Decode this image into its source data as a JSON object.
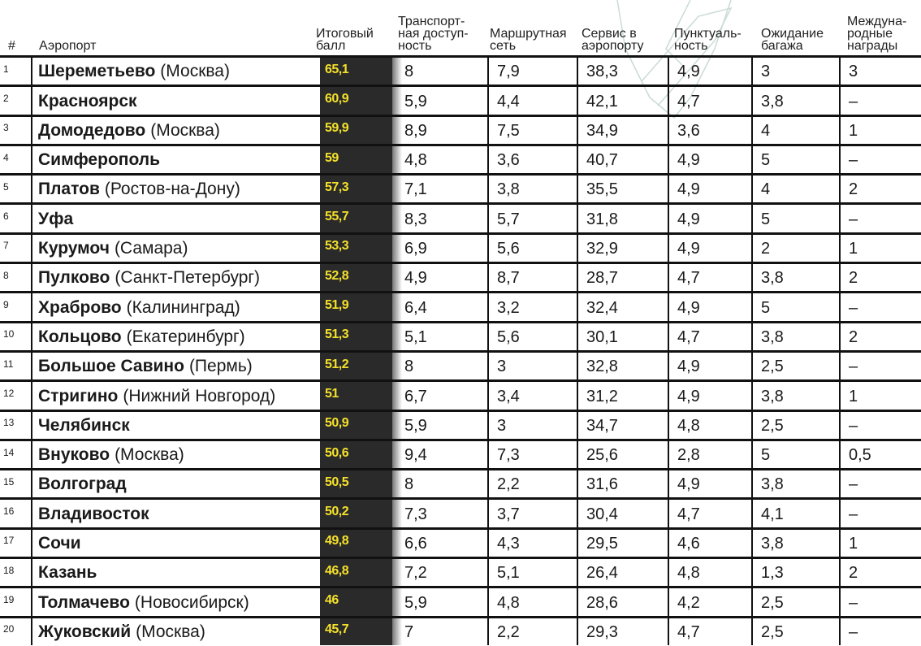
{
  "headers": {
    "rank": "#",
    "airport": "Аэропорт",
    "score": [
      "Итоговый",
      "балл"
    ],
    "transport": [
      "Транспорт-",
      "ная доступ-",
      "ность"
    ],
    "routes": [
      "Маршрутная",
      "сеть"
    ],
    "service": [
      "Сервис в",
      "аэропорту"
    ],
    "punctuality": [
      "Пунктуаль-",
      "ность"
    ],
    "baggage": [
      "Ожидание",
      "багажа"
    ],
    "awards": [
      "Междуна-",
      "родные",
      "награды"
    ]
  },
  "colors": {
    "score_bg": "#2a2a2a",
    "score_text": "#f5e12a",
    "rule": "#111111"
  },
  "rows": [
    {
      "rank": "1",
      "name": "Шереметьево",
      "city": "(Москва)",
      "score": "65,1",
      "transport": "8",
      "routes": "7,9",
      "service": "38,3",
      "punctuality": "4,9",
      "baggage": "3",
      "awards": "3"
    },
    {
      "rank": "2",
      "name": "Красноярск",
      "city": "",
      "score": "60,9",
      "transport": "5,9",
      "routes": "4,4",
      "service": "42,1",
      "punctuality": "4,7",
      "baggage": "3,8",
      "awards": "–"
    },
    {
      "rank": "3",
      "name": "Домодедово",
      "city": "(Москва)",
      "score": "59,9",
      "transport": "8,9",
      "routes": "7,5",
      "service": "34,9",
      "punctuality": "3,6",
      "baggage": "4",
      "awards": "1"
    },
    {
      "rank": "4",
      "name": "Симферополь",
      "city": "",
      "score": "59",
      "transport": "4,8",
      "routes": "3,6",
      "service": "40,7",
      "punctuality": "4,9",
      "baggage": "5",
      "awards": "–"
    },
    {
      "rank": "5",
      "name": "Платов",
      "city": "(Ростов-на-Дону)",
      "score": "57,3",
      "transport": "7,1",
      "routes": "3,8",
      "service": "35,5",
      "punctuality": "4,9",
      "baggage": "4",
      "awards": "2"
    },
    {
      "rank": "6",
      "name": "Уфа",
      "city": "",
      "score": "55,7",
      "transport": "8,3",
      "routes": "5,7",
      "service": "31,8",
      "punctuality": "4,9",
      "baggage": "5",
      "awards": "–"
    },
    {
      "rank": "7",
      "name": "Курумоч",
      "city": "(Самара)",
      "score": "53,3",
      "transport": "6,9",
      "routes": "5,6",
      "service": "32,9",
      "punctuality": "4,9",
      "baggage": "2",
      "awards": "1"
    },
    {
      "rank": "8",
      "name": "Пулково",
      "city": "(Санкт-Петербург)",
      "score": "52,8",
      "transport": "4,9",
      "routes": "8,7",
      "service": "28,7",
      "punctuality": "4,7",
      "baggage": "3,8",
      "awards": "2"
    },
    {
      "rank": "9",
      "name": "Храброво",
      "city": "(Калининград)",
      "score": "51,9",
      "transport": "6,4",
      "routes": "3,2",
      "service": "32,4",
      "punctuality": "4,9",
      "baggage": "5",
      "awards": "–"
    },
    {
      "rank": "10",
      "name": "Кольцово",
      "city": "(Екатеринбург)",
      "score": "51,3",
      "transport": "5,1",
      "routes": "5,6",
      "service": "30,1",
      "punctuality": "4,7",
      "baggage": "3,8",
      "awards": "2"
    },
    {
      "rank": "11",
      "name": "Большое Савино",
      "city": "(Пермь)",
      "score": "51,2",
      "transport": "8",
      "routes": "3",
      "service": "32,8",
      "punctuality": "4,9",
      "baggage": "2,5",
      "awards": "–"
    },
    {
      "rank": "12",
      "name": "Стригино",
      "city": "(Нижний Новгород)",
      "score": "51",
      "transport": "6,7",
      "routes": "3,4",
      "service": "31,2",
      "punctuality": "4,9",
      "baggage": "3,8",
      "awards": "1"
    },
    {
      "rank": "13",
      "name": "Челябинск",
      "city": "",
      "score": "50,9",
      "transport": "5,9",
      "routes": "3",
      "service": "34,7",
      "punctuality": "4,8",
      "baggage": "2,5",
      "awards": "–"
    },
    {
      "rank": "14",
      "name": "Внуково",
      "city": "(Москва)",
      "score": "50,6",
      "transport": "9,4",
      "routes": "7,3",
      "service": "25,6",
      "punctuality": "2,8",
      "baggage": "5",
      "awards": "0,5"
    },
    {
      "rank": "15",
      "name": "Волгоград",
      "city": "",
      "score": "50,5",
      "transport": "8",
      "routes": "2,2",
      "service": "31,6",
      "punctuality": "4,9",
      "baggage": "3,8",
      "awards": "–"
    },
    {
      "rank": "16",
      "name": "Владивосток",
      "city": "",
      "score": "50,2",
      "transport": "7,3",
      "routes": "3,7",
      "service": "30,4",
      "punctuality": "4,7",
      "baggage": "4,1",
      "awards": "–"
    },
    {
      "rank": "17",
      "name": "Сочи",
      "city": "",
      "score": "49,8",
      "transport": "6,6",
      "routes": "4,3",
      "service": "29,5",
      "punctuality": "4,6",
      "baggage": "3,8",
      "awards": "1"
    },
    {
      "rank": "18",
      "name": "Казань",
      "city": "",
      "score": "46,8",
      "transport": "7,2",
      "routes": "5,1",
      "service": "26,4",
      "punctuality": "4,8",
      "baggage": "1,3",
      "awards": "2"
    },
    {
      "rank": "19",
      "name": "Толмачево",
      "city": "(Новосибирск)",
      "score": "46",
      "transport": "5,9",
      "routes": "4,8",
      "service": "28,6",
      "punctuality": "4,2",
      "baggage": "2,5",
      "awards": "–"
    },
    {
      "rank": "20",
      "name": "Жуковский",
      "city": "(Москва)",
      "score": "45,7",
      "transport": "7",
      "routes": "2,2",
      "service": "29,3",
      "punctuality": "4,7",
      "baggage": "2,5",
      "awards": "–"
    }
  ]
}
